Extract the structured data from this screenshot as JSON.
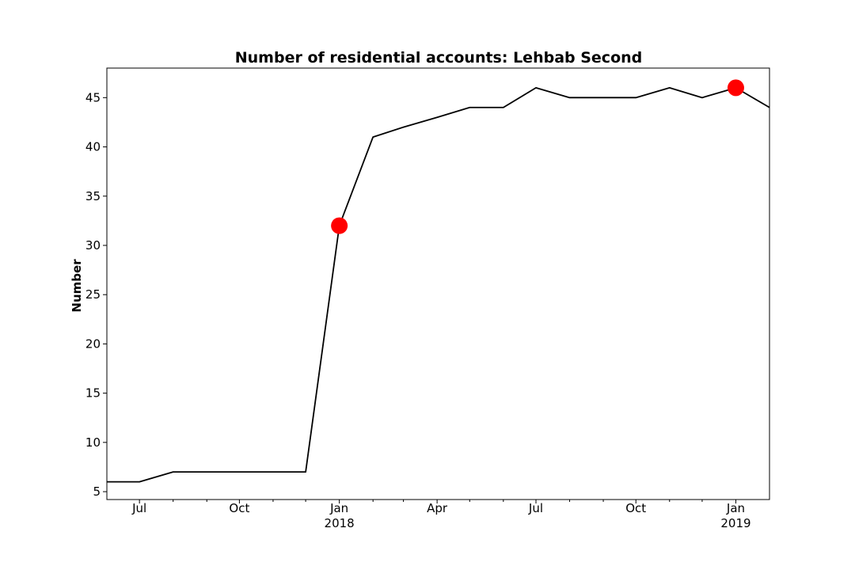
{
  "chart_data": {
    "type": "line",
    "title": "Number of residential accounts: Lehbab Second",
    "xlabel": "",
    "ylabel": "Number",
    "x_range": [
      "2017-06-01",
      "2019-02-01"
    ],
    "ylim": [
      4.2,
      48
    ],
    "y_ticks": [
      5,
      10,
      15,
      20,
      25,
      30,
      35,
      40,
      45
    ],
    "x_ticks": [
      {
        "date": "2017-07-01",
        "label": "Jul",
        "sublabel": ""
      },
      {
        "date": "2017-10-01",
        "label": "Oct",
        "sublabel": ""
      },
      {
        "date": "2018-01-01",
        "label": "Jan",
        "sublabel": "2018"
      },
      {
        "date": "2018-04-01",
        "label": "Apr",
        "sublabel": ""
      },
      {
        "date": "2018-07-01",
        "label": "Jul",
        "sublabel": ""
      },
      {
        "date": "2018-10-01",
        "label": "Oct",
        "sublabel": ""
      },
      {
        "date": "2019-01-01",
        "label": "Jan",
        "sublabel": "2019"
      }
    ],
    "minor_ticks": [
      "2017-08-01",
      "2017-09-01",
      "2017-11-01",
      "2017-12-01",
      "2018-02-01",
      "2018-03-01",
      "2018-05-01",
      "2018-06-01",
      "2018-08-01",
      "2018-09-01",
      "2018-11-01",
      "2018-12-01"
    ],
    "grid": false,
    "series": [
      {
        "color": "#000000",
        "points": [
          [
            "2017-06-01",
            6
          ],
          [
            "2017-07-01",
            6
          ],
          [
            "2017-08-01",
            7
          ],
          [
            "2017-09-01",
            7
          ],
          [
            "2017-10-01",
            7
          ],
          [
            "2017-11-01",
            7
          ],
          [
            "2017-12-01",
            7
          ],
          [
            "2018-01-01",
            32
          ],
          [
            "2018-02-01",
            41
          ],
          [
            "2018-03-01",
            42
          ],
          [
            "2018-04-01",
            43
          ],
          [
            "2018-05-01",
            44
          ],
          [
            "2018-06-01",
            44
          ],
          [
            "2018-07-01",
            46
          ],
          [
            "2018-08-01",
            45
          ],
          [
            "2018-09-01",
            45
          ],
          [
            "2018-10-01",
            45
          ],
          [
            "2018-11-01",
            46
          ],
          [
            "2018-12-01",
            45
          ],
          [
            "2019-01-01",
            46
          ],
          [
            "2019-02-01",
            44
          ]
        ]
      }
    ],
    "highlights": {
      "color": "#ff0000",
      "points": [
        [
          "2018-01-01",
          32
        ],
        [
          "2019-01-01",
          46
        ]
      ]
    }
  }
}
